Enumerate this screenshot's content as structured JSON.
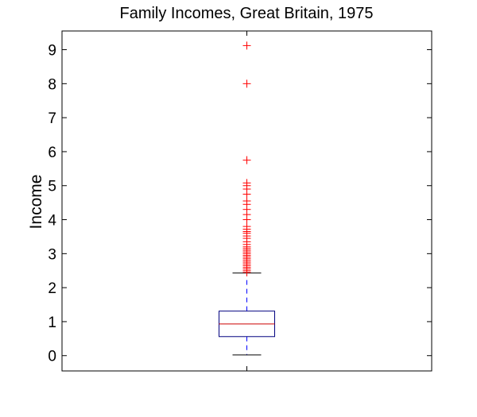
{
  "chart_data": {
    "type": "box",
    "title": "Family Incomes, Great Britain, 1975",
    "xlabel": "",
    "ylabel": "Income",
    "ylim": [
      -0.45,
      9.55
    ],
    "yticks": [
      0,
      1,
      2,
      3,
      4,
      5,
      6,
      7,
      8,
      9
    ],
    "grid": false,
    "box": {
      "min_whisker": 0.02,
      "q1": 0.56,
      "median": 0.93,
      "q3": 1.31,
      "max_whisker": 2.43
    },
    "outliers": [
      2.45,
      2.5,
      2.55,
      2.6,
      2.65,
      2.7,
      2.75,
      2.8,
      2.85,
      2.9,
      2.95,
      3.0,
      3.05,
      3.1,
      3.15,
      3.2,
      3.27,
      3.35,
      3.45,
      3.52,
      3.6,
      3.65,
      3.72,
      3.8,
      4.0,
      4.15,
      4.3,
      4.45,
      4.55,
      4.75,
      4.9,
      5.0,
      5.08,
      5.75,
      8.0,
      9.12
    ],
    "colors": {
      "box": "#00007f",
      "median": "#cc0000",
      "whisker": "#0000ff",
      "outlier": "#ff0000",
      "axes": "#000000"
    }
  }
}
